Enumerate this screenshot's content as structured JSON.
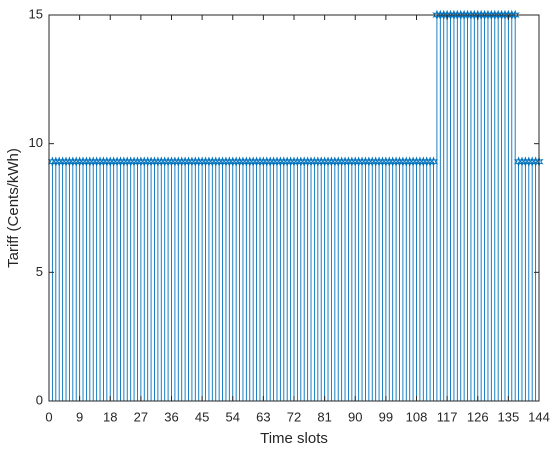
{
  "chart_data": {
    "type": "stem",
    "x_label": "Time slots",
    "y_label": "Tariff (Cents/kWh)",
    "color": "#0072BD",
    "xlim": [
      0,
      144
    ],
    "ylim": [
      0,
      15
    ],
    "xticks": [
      0,
      9,
      18,
      27,
      36,
      45,
      54,
      63,
      72,
      81,
      90,
      99,
      108,
      117,
      126,
      135,
      144
    ],
    "yticks": [
      0,
      5,
      10,
      15
    ],
    "grid": false,
    "x": [
      1,
      2,
      3,
      4,
      5,
      6,
      7,
      8,
      9,
      10,
      11,
      12,
      13,
      14,
      15,
      16,
      17,
      18,
      19,
      20,
      21,
      22,
      23,
      24,
      25,
      26,
      27,
      28,
      29,
      30,
      31,
      32,
      33,
      34,
      35,
      36,
      37,
      38,
      39,
      40,
      41,
      42,
      43,
      44,
      45,
      46,
      47,
      48,
      49,
      50,
      51,
      52,
      53,
      54,
      55,
      56,
      57,
      58,
      59,
      60,
      61,
      62,
      63,
      64,
      65,
      66,
      67,
      68,
      69,
      70,
      71,
      72,
      73,
      74,
      75,
      76,
      77,
      78,
      79,
      80,
      81,
      82,
      83,
      84,
      85,
      86,
      87,
      88,
      89,
      90,
      91,
      92,
      93,
      94,
      95,
      96,
      97,
      98,
      99,
      100,
      101,
      102,
      103,
      104,
      105,
      106,
      107,
      108,
      109,
      110,
      111,
      112,
      113,
      114,
      115,
      116,
      117,
      118,
      119,
      120,
      121,
      122,
      123,
      124,
      125,
      126,
      127,
      128,
      129,
      130,
      131,
      132,
      133,
      134,
      135,
      136,
      137,
      138,
      139,
      140,
      141,
      142,
      143,
      144
    ],
    "values": [
      9.3,
      9.3,
      9.3,
      9.3,
      9.3,
      9.3,
      9.3,
      9.3,
      9.3,
      9.3,
      9.3,
      9.3,
      9.3,
      9.3,
      9.3,
      9.3,
      9.3,
      9.3,
      9.3,
      9.3,
      9.3,
      9.3,
      9.3,
      9.3,
      9.3,
      9.3,
      9.3,
      9.3,
      9.3,
      9.3,
      9.3,
      9.3,
      9.3,
      9.3,
      9.3,
      9.3,
      9.3,
      9.3,
      9.3,
      9.3,
      9.3,
      9.3,
      9.3,
      9.3,
      9.3,
      9.3,
      9.3,
      9.3,
      9.3,
      9.3,
      9.3,
      9.3,
      9.3,
      9.3,
      9.3,
      9.3,
      9.3,
      9.3,
      9.3,
      9.3,
      9.3,
      9.3,
      9.3,
      9.3,
      9.3,
      9.3,
      9.3,
      9.3,
      9.3,
      9.3,
      9.3,
      9.3,
      9.3,
      9.3,
      9.3,
      9.3,
      9.3,
      9.3,
      9.3,
      9.3,
      9.3,
      9.3,
      9.3,
      9.3,
      9.3,
      9.3,
      9.3,
      9.3,
      9.3,
      9.3,
      9.3,
      9.3,
      9.3,
      9.3,
      9.3,
      9.3,
      9.3,
      9.3,
      9.3,
      9.3,
      9.3,
      9.3,
      9.3,
      9.3,
      9.3,
      9.3,
      9.3,
      9.3,
      9.3,
      9.3,
      9.3,
      9.3,
      9.3,
      15,
      15,
      15,
      15,
      15,
      15,
      15,
      15,
      15,
      15,
      15,
      15,
      15,
      15,
      15,
      15,
      15,
      15,
      15,
      15,
      15,
      15,
      15,
      15,
      9.3,
      9.3,
      9.3,
      9.3,
      9.3,
      9.3,
      9.3
    ]
  }
}
